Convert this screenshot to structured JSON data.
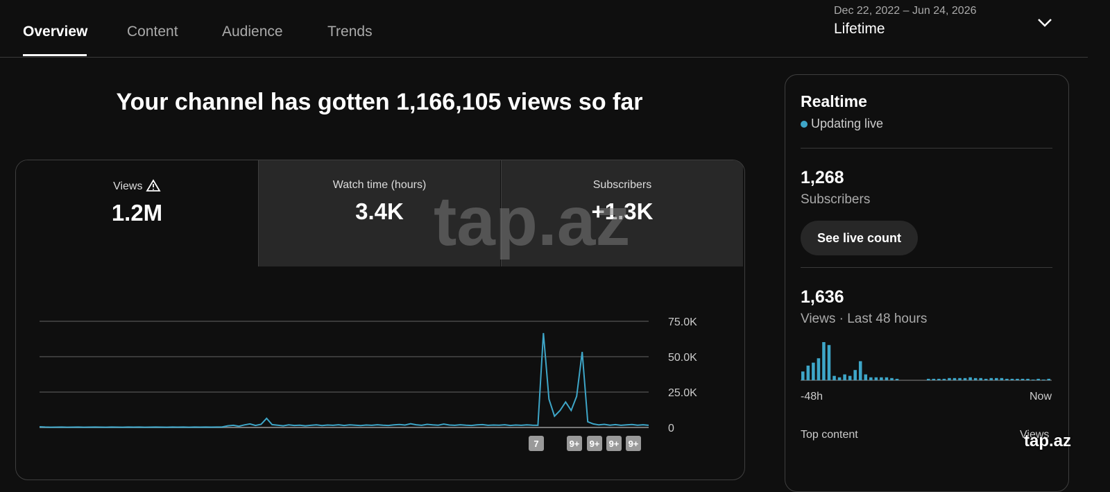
{
  "tabs": [
    "Overview",
    "Content",
    "Audience",
    "Trends"
  ],
  "date_range": {
    "dates": "Dec 22, 2022 – Jun 24, 2026",
    "label": "Lifetime"
  },
  "headline": "Your channel has gotten 1,166,105 views so far",
  "metrics": [
    {
      "label": "Views",
      "value": "1.2M"
    },
    {
      "label": "Watch time (hours)",
      "value": "3.4K"
    },
    {
      "label": "Subscribers",
      "value": "+1.3K"
    }
  ],
  "chart_data": [
    {
      "type": "line",
      "color": "#3ea6c8",
      "grid": true,
      "ylim": [
        0,
        75000
      ],
      "yticks": [
        {
          "value": 0,
          "label": "0"
        },
        {
          "value": 25000,
          "label": "25.0K"
        },
        {
          "value": 50000,
          "label": "50.0K"
        },
        {
          "value": 75000,
          "label": "75.0K"
        }
      ],
      "values": [
        500,
        300,
        200,
        250,
        300,
        200,
        250,
        300,
        200,
        250,
        300,
        250,
        200,
        300,
        250,
        200,
        300,
        250,
        300,
        200,
        250,
        300,
        250,
        200,
        300,
        250,
        300,
        200,
        300,
        250,
        300,
        250,
        300,
        400,
        1200,
        1500,
        900,
        1800,
        2500,
        1400,
        2200,
        6400,
        2000,
        1600,
        1200,
        1800,
        1400,
        1600,
        1200,
        1500,
        1800,
        1300,
        1700,
        1500,
        1900,
        1400,
        1800,
        1600,
        1300,
        1700,
        1500,
        1900,
        1600,
        1400,
        1800,
        2100,
        1700,
        2600,
        1900,
        1500,
        2200,
        1800,
        1600,
        2400,
        1700,
        1500,
        1900,
        1600,
        1400,
        1800,
        2000,
        1500,
        1700,
        1600,
        1900,
        1400,
        1700,
        1500,
        1800,
        1600,
        1500,
        66700,
        20000,
        8000,
        12000,
        18000,
        12000,
        22000,
        53400,
        4000,
        2500,
        1800,
        2200,
        1600,
        2000,
        1500,
        1800,
        2100,
        1600,
        1900,
        1500
      ],
      "annotations": [
        "7",
        "9+",
        "9+",
        "9+",
        "9+"
      ]
    },
    {
      "type": "bar",
      "color": "#3ea6c8",
      "xlabels": [
        "-48h",
        "Now"
      ],
      "values": [
        24,
        40,
        48,
        60,
        104,
        96,
        12,
        8,
        16,
        12,
        28,
        52,
        16,
        8,
        8,
        8,
        8,
        6,
        4,
        0,
        0,
        0,
        0,
        0,
        4,
        4,
        4,
        4,
        6,
        6,
        6,
        6,
        8,
        6,
        6,
        4,
        6,
        6,
        6,
        4,
        4,
        4,
        4,
        4,
        2,
        4,
        2,
        4
      ]
    }
  ],
  "realtime": {
    "title": "Realtime",
    "status": "Updating live",
    "subscribers": {
      "value": "1,268",
      "label": "Subscribers"
    },
    "button": "See live count",
    "views": {
      "value": "1,636",
      "label": "Views · Last 48 hours"
    },
    "top_content": {
      "label": "Top content",
      "metric": "Views"
    }
  },
  "watermark": [
    "tap.az",
    "tap.az"
  ]
}
